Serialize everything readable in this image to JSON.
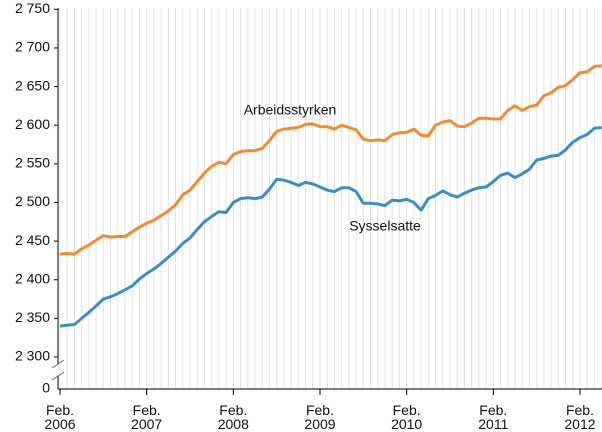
{
  "chart_data": {
    "type": "line",
    "categories": [
      "Feb. 2006",
      null,
      null,
      null,
      null,
      null,
      null,
      null,
      null,
      null,
      null,
      null,
      "Feb. 2007",
      null,
      null,
      null,
      null,
      null,
      null,
      null,
      null,
      null,
      null,
      null,
      "Feb. 2008",
      null,
      null,
      null,
      null,
      null,
      null,
      null,
      null,
      null,
      null,
      null,
      "Feb. 2009",
      null,
      null,
      null,
      null,
      null,
      null,
      null,
      null,
      null,
      null,
      null,
      "Feb. 2010",
      null,
      null,
      null,
      null,
      null,
      null,
      null,
      null,
      null,
      null,
      null,
      "Feb. 2011",
      null,
      null,
      null,
      null,
      null,
      null,
      null,
      null,
      null,
      null,
      null,
      "Feb. 2012",
      null,
      null,
      null
    ],
    "series": [
      {
        "name": "Arbeidsstyrken",
        "color": "#f28a2e",
        "values": [
          2433,
          2434,
          2433,
          2440,
          2445,
          2451,
          2457,
          2455,
          2456,
          2456,
          2462,
          2468,
          2473,
          2477,
          2483,
          2489,
          2497,
          2510,
          2516,
          2527,
          2538,
          2547,
          2552,
          2550,
          2562,
          2566,
          2567,
          2567,
          2570,
          2580,
          2592,
          2595,
          2596,
          2597,
          2601,
          2602,
          2598,
          2598,
          2595,
          2600,
          2597,
          2594,
          2582,
          2580,
          2581,
          2580,
          2588,
          2590,
          2591,
          2595,
          2587,
          2586,
          2600,
          2604,
          2606,
          2599,
          2598,
          2603,
          2609,
          2609,
          2608,
          2608,
          2619,
          2625,
          2619,
          2624,
          2626,
          2638,
          2642,
          2649,
          2651,
          2659,
          2668,
          2669,
          2676,
          2677
        ]
      },
      {
        "name": "Sysselsatte",
        "color": "#3a8ec6",
        "values": [
          2340,
          2341,
          2342,
          2350,
          2358,
          2366,
          2375,
          2378,
          2382,
          2387,
          2392,
          2401,
          2408,
          2414,
          2421,
          2429,
          2437,
          2447,
          2454,
          2465,
          2475,
          2482,
          2488,
          2487,
          2500,
          2505,
          2506,
          2505,
          2507,
          2517,
          2530,
          2529,
          2526,
          2522,
          2526,
          2524,
          2520,
          2516,
          2514,
          2519,
          2519,
          2514,
          2499,
          2499,
          2498,
          2496,
          2503,
          2502,
          2504,
          2500,
          2490,
          2505,
          2509,
          2515,
          2510,
          2507,
          2512,
          2516,
          2519,
          2520,
          2527,
          2535,
          2538,
          2532,
          2537,
          2543,
          2555,
          2557,
          2560,
          2561,
          2568,
          2578,
          2584,
          2588,
          2596,
          2597
        ]
      }
    ],
    "ylim": [
      2300,
      2750
    ],
    "yticks": [
      {
        "value": 2300,
        "label": "2 300"
      },
      {
        "value": 2350,
        "label": "2 350"
      },
      {
        "value": 2400,
        "label": "2 400"
      },
      {
        "value": 2450,
        "label": "2 450"
      },
      {
        "value": 2500,
        "label": "2 500"
      },
      {
        "value": 2550,
        "label": "2 550"
      },
      {
        "value": 2600,
        "label": "2 600"
      },
      {
        "value": 2650,
        "label": "2 650"
      },
      {
        "value": 2700,
        "label": "2 700"
      },
      {
        "value": 2750,
        "label": "2 750"
      }
    ],
    "baseline_tick": 0,
    "grid": true
  }
}
